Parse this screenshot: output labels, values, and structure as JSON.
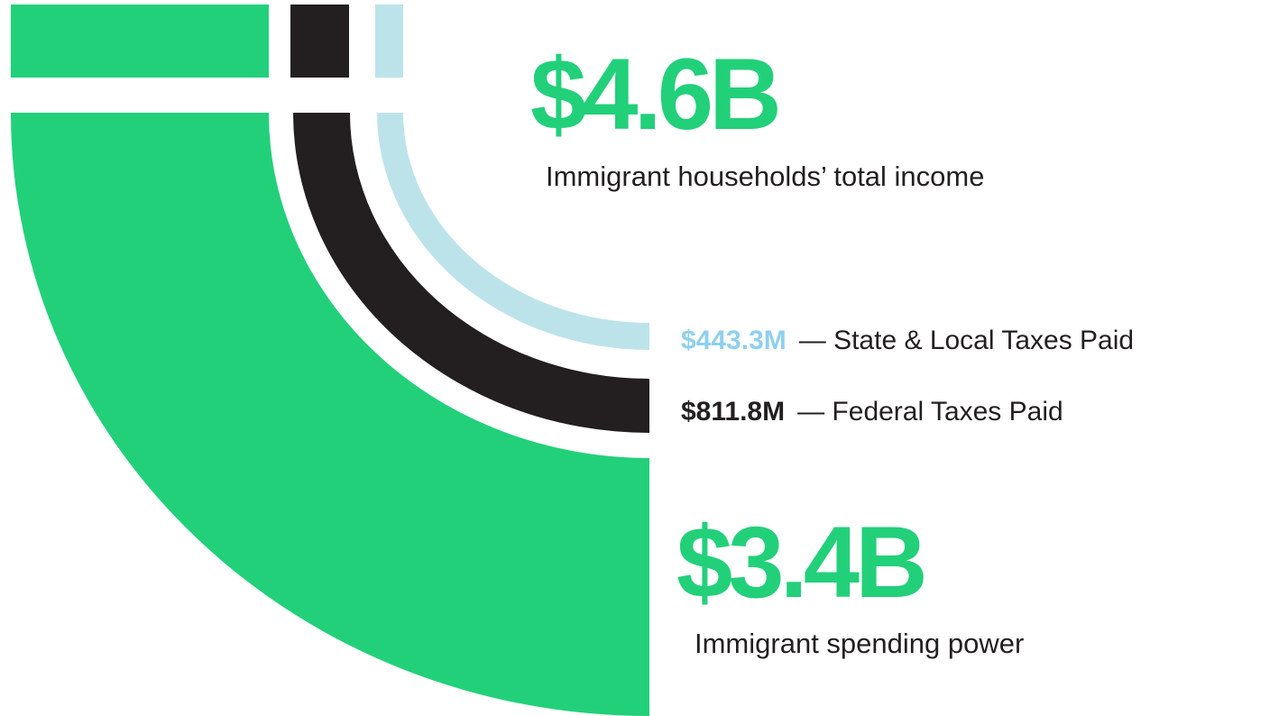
{
  "income": {
    "value": "$4.6B",
    "label": "Immigrant households’ total income"
  },
  "state_local_taxes": {
    "value": "$443.3M",
    "label": "— State & Local Taxes Paid"
  },
  "federal_taxes": {
    "value": "$811.8M",
    "label": "— Federal Taxes Paid"
  },
  "spending_power": {
    "value": "$3.4B",
    "label": "Immigrant spending power"
  }
}
